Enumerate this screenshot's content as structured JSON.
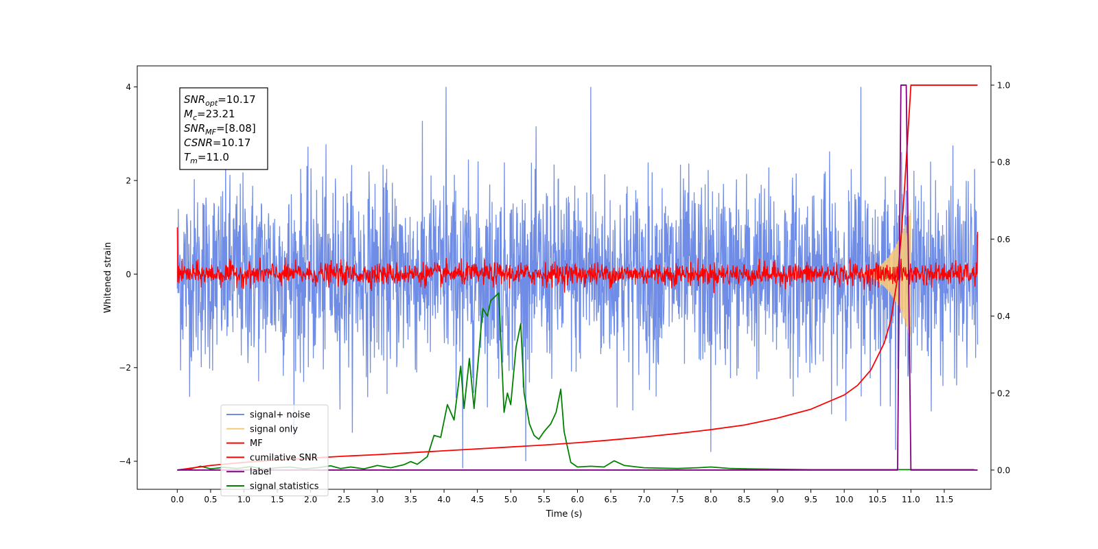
{
  "chart_data": {
    "type": "line",
    "xlabel": "Time (s)",
    "ylabel_left": "Whitened strain",
    "xlim": [
      -0.6,
      12.2
    ],
    "ylim_left": [
      -4.6,
      4.45
    ],
    "ylim_right": [
      -0.05,
      1.05
    ],
    "x_ticks": [
      0.0,
      0.5,
      1.0,
      1.5,
      2.0,
      2.5,
      3.0,
      3.5,
      4.0,
      4.5,
      5.0,
      5.5,
      6.0,
      6.5,
      7.0,
      7.5,
      8.0,
      8.5,
      9.0,
      9.5,
      10.0,
      10.5,
      11.0,
      11.5
    ],
    "x_tick_labels": [
      "0.0",
      "0.5",
      "1.0",
      "1.5",
      "2.0",
      "2.5",
      "3.0",
      "3.5",
      "4.0",
      "4.5",
      "5.0",
      "5.5",
      "6.0",
      "6.5",
      "7.0",
      "7.5",
      "8.0",
      "8.5",
      "9.0",
      "9.5",
      "10.0",
      "10.5",
      "11.0",
      "11.5"
    ],
    "y_left_ticks": [
      -4,
      -2,
      0,
      2,
      4
    ],
    "y_left_tick_labels": [
      "−4",
      "−2",
      "0",
      "2",
      "4"
    ],
    "y_right_ticks": [
      0.0,
      0.2,
      0.4,
      0.6,
      0.8,
      1.0
    ],
    "y_right_tick_labels": [
      "0.0",
      "0.2",
      "0.4",
      "0.6",
      "0.8",
      "1.0"
    ],
    "annotation": {
      "lines": [
        {
          "base": "SNR",
          "sub": "opt",
          "value": "=10.17"
        },
        {
          "base": "M",
          "sub": "c",
          "value": "=23.21"
        },
        {
          "base": "SNR",
          "sub": "MF",
          "value": "=[8.08]"
        },
        {
          "base": "CSNR",
          "sub": "",
          "value": "=10.17"
        },
        {
          "base": "T",
          "sub": "m",
          "value": "=11.0"
        }
      ]
    },
    "legend": {
      "placement": "lower-left",
      "entries": [
        {
          "label": "signal+ noise",
          "color": "#6f8de6"
        },
        {
          "label": "signal only",
          "color": "#f5c97a"
        },
        {
          "label": "MF",
          "color": "#ff0000"
        },
        {
          "label": "cumilative SNR",
          "color": "#ff0000"
        },
        {
          "label": "label",
          "color": "#800080"
        },
        {
          "label": "signal statistics",
          "color": "#008000"
        }
      ]
    },
    "series": [
      {
        "name": "signal+ noise",
        "axis": "left",
        "color": "#6f8de6",
        "kind": "noise",
        "x_range": [
          0.0,
          12.0
        ],
        "amplitude": 1.0,
        "max_abs": 4.0,
        "note_peaks_x": [
          4.2,
          10.95
        ],
        "peaks": [
          {
            "x": 4.03,
            "y": 4.0
          },
          {
            "x": 6.2,
            "y": 4.0
          },
          {
            "x": 10.25,
            "y": 4.0
          },
          {
            "x": 4.28,
            "y": -4.15
          },
          {
            "x": 8.0,
            "y": -3.8
          }
        ]
      },
      {
        "name": "signal only",
        "axis": "left",
        "color": "#f5c97a",
        "kind": "chirp",
        "x_range": [
          10.0,
          11.0
        ],
        "max_amplitude": 1.4
      },
      {
        "name": "MF",
        "axis": "left",
        "color": "#ff0000",
        "kind": "noise",
        "x_range": [
          0.0,
          12.0
        ],
        "amplitude": 0.12,
        "max_abs": 0.45,
        "start_value": 1.0,
        "end_value": 0.9
      },
      {
        "name": "cumilative SNR",
        "axis": "right",
        "color": "#ff0000",
        "x": [
          0.0,
          0.5,
          1.0,
          1.5,
          2.0,
          2.5,
          3.0,
          3.5,
          4.0,
          4.5,
          5.0,
          5.5,
          6.0,
          6.5,
          7.0,
          7.5,
          8.0,
          8.5,
          9.0,
          9.5,
          10.0,
          10.2,
          10.4,
          10.6,
          10.7,
          10.8,
          10.85,
          10.9,
          10.95,
          11.0,
          11.5,
          12.0
        ],
        "y": [
          0.0,
          0.012,
          0.02,
          0.026,
          0.031,
          0.036,
          0.04,
          0.045,
          0.05,
          0.055,
          0.06,
          0.065,
          0.071,
          0.078,
          0.086,
          0.095,
          0.105,
          0.117,
          0.135,
          0.158,
          0.195,
          0.22,
          0.26,
          0.33,
          0.39,
          0.5,
          0.6,
          0.72,
          0.86,
          1.0,
          1.0,
          1.0
        ]
      },
      {
        "name": "label",
        "axis": "right",
        "color": "#800080",
        "x": [
          0.0,
          10.8,
          10.85,
          10.93,
          11.0,
          12.0
        ],
        "y": [
          0.0,
          0.0,
          1.0,
          1.0,
          0.0,
          0.0
        ]
      },
      {
        "name": "signal statistics",
        "axis": "right",
        "color": "#008000",
        "x": [
          0.0,
          0.2,
          0.35,
          0.5,
          0.7,
          0.9,
          1.1,
          1.3,
          1.5,
          1.7,
          1.9,
          2.1,
          2.3,
          2.45,
          2.6,
          2.8,
          3.0,
          3.2,
          3.4,
          3.5,
          3.6,
          3.75,
          3.85,
          3.95,
          4.05,
          4.15,
          4.25,
          4.3,
          4.38,
          4.45,
          4.52,
          4.58,
          4.65,
          4.7,
          4.76,
          4.82,
          4.9,
          4.95,
          5.0,
          5.08,
          5.15,
          5.2,
          5.28,
          5.35,
          5.42,
          5.5,
          5.6,
          5.68,
          5.75,
          5.8,
          5.9,
          6.0,
          6.2,
          6.4,
          6.55,
          6.7,
          7.0,
          7.5,
          7.8,
          8.0,
          8.3,
          8.6,
          9.0,
          9.5,
          10.0,
          10.5,
          11.0,
          11.5,
          11.95
        ],
        "y": [
          0.0,
          0.003,
          0.01,
          0.003,
          0.007,
          0.004,
          0.009,
          0.002,
          0.006,
          0.008,
          0.003,
          0.006,
          0.011,
          0.004,
          0.008,
          0.003,
          0.012,
          0.006,
          0.014,
          0.022,
          0.015,
          0.035,
          0.09,
          0.085,
          0.17,
          0.13,
          0.27,
          0.16,
          0.29,
          0.16,
          0.3,
          0.42,
          0.4,
          0.44,
          0.45,
          0.46,
          0.15,
          0.2,
          0.17,
          0.32,
          0.38,
          0.2,
          0.12,
          0.09,
          0.08,
          0.1,
          0.12,
          0.15,
          0.21,
          0.1,
          0.02,
          0.008,
          0.01,
          0.008,
          0.024,
          0.012,
          0.006,
          0.004,
          0.006,
          0.008,
          0.004,
          0.003,
          0.002,
          0.001,
          0.001,
          0.001,
          0.001,
          0.001,
          0.001
        ]
      }
    ]
  }
}
